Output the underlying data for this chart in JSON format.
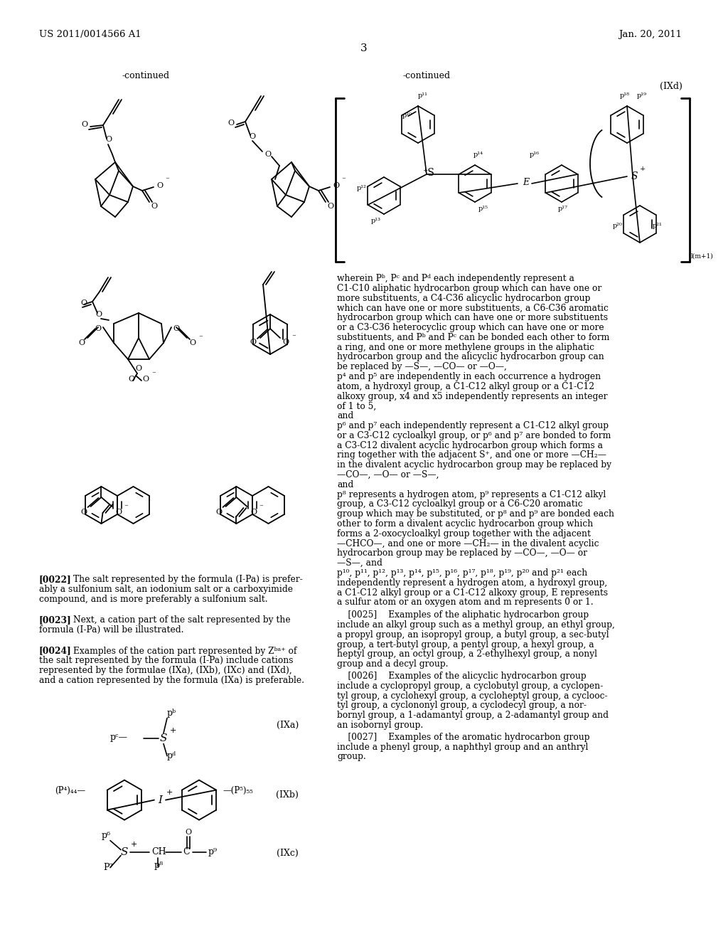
{
  "page_number": "3",
  "patent_number": "US 2011/0014566 A1",
  "date": "Jan. 20, 2011",
  "background_color": "#ffffff",
  "continued_left": "-continued",
  "continued_right": "-continued",
  "ixd_label": "(IXd)",
  "ixa_label": "(IXa)",
  "ixb_label": "(IXb)",
  "ixc_label": "(IXc)",
  "subscript_bracket": "l(m+1)"
}
